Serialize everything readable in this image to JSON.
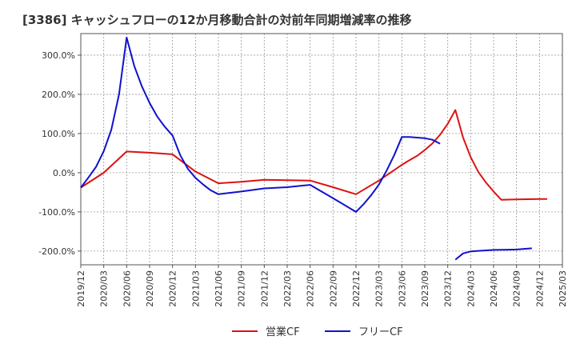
{
  "chart_data": {
    "type": "line",
    "title": "[3386]  キャッシュフローの12か月移動合計の対前年同期増減率の推移",
    "xlabel": "",
    "ylabel": "",
    "x_range": [
      "2019/12",
      "2025/03"
    ],
    "ylim": [
      -235,
      355
    ],
    "y_ticks": [
      {
        "value": 300,
        "label": "300.0%"
      },
      {
        "value": 200,
        "label": "200.0%"
      },
      {
        "value": 100,
        "label": "100.0%"
      },
      {
        "value": 0,
        "label": "0.0%"
      },
      {
        "value": -100,
        "label": "-100.0%"
      },
      {
        "value": -200,
        "label": "-200.0%"
      }
    ],
    "x_ticks": [
      "2019/12",
      "2020/03",
      "2020/06",
      "2020/09",
      "2020/12",
      "2021/03",
      "2021/06",
      "2021/09",
      "2021/12",
      "2022/03",
      "2022/06",
      "2022/09",
      "2022/12",
      "2023/03",
      "2023/06",
      "2023/09",
      "2023/12",
      "2024/03",
      "2024/06",
      "2024/09",
      "2024/12",
      "2025/03"
    ],
    "grid": true,
    "legend_position": "bottom",
    "series": [
      {
        "name": "営業CF",
        "color": "#dd1111",
        "points": [
          {
            "x": "2019/12",
            "y": -38
          },
          {
            "x": "2020/03",
            "y": 0
          },
          {
            "x": "2020/06",
            "y": 54
          },
          {
            "x": "2020/09",
            "y": 51
          },
          {
            "x": "2020/12",
            "y": 47
          },
          {
            "x": "2021/03",
            "y": 3
          },
          {
            "x": "2021/06",
            "y": -27
          },
          {
            "x": "2021/09",
            "y": -23
          },
          {
            "x": "2021/12",
            "y": -18
          },
          {
            "x": "2022/03",
            "y": -19
          },
          {
            "x": "2022/06",
            "y": -20
          },
          {
            "x": "2022/09",
            "y": -37
          },
          {
            "x": "2022/12",
            "y": -55
          },
          {
            "x": "2023/03",
            "y": -20
          },
          {
            "x": "2023/06",
            "y": 20
          },
          {
            "x": "2023/07",
            "y": 32
          },
          {
            "x": "2023/08",
            "y": 43
          },
          {
            "x": "2023/09",
            "y": 58
          },
          {
            "x": "2023/10",
            "y": 75
          },
          {
            "x": "2023/11",
            "y": 97
          },
          {
            "x": "2023/12",
            "y": 125
          },
          {
            "x": "2024/01",
            "y": 160
          },
          {
            "x": "2024/02",
            "y": 90
          },
          {
            "x": "2024/03",
            "y": 40
          },
          {
            "x": "2024/04",
            "y": 2
          },
          {
            "x": "2024/05",
            "y": -25
          },
          {
            "x": "2024/06",
            "y": -48
          },
          {
            "x": "2024/07",
            "y": -69
          },
          {
            "x": "2024/09",
            "y": -68
          },
          {
            "x": "2024/12",
            "y": -67
          },
          {
            "x": "2025/01",
            "y": -67
          }
        ]
      },
      {
        "name": "フリーCF",
        "color": "#1111cc",
        "points": [
          {
            "x": "2019/12",
            "y": -38
          },
          {
            "x": "2020/01",
            "y": -12
          },
          {
            "x": "2020/02",
            "y": 15
          },
          {
            "x": "2020/03",
            "y": 55
          },
          {
            "x": "2020/04",
            "y": 110
          },
          {
            "x": "2020/05",
            "y": 200
          },
          {
            "x": "2020/06",
            "y": 345
          },
          {
            "x": "2020/07",
            "y": 272
          },
          {
            "x": "2020/08",
            "y": 220
          },
          {
            "x": "2020/09",
            "y": 178
          },
          {
            "x": "2020/10",
            "y": 143
          },
          {
            "x": "2020/11",
            "y": 117
          },
          {
            "x": "2020/12",
            "y": 95
          },
          {
            "x": "2021/01",
            "y": 45
          },
          {
            "x": "2021/02",
            "y": 10
          },
          {
            "x": "2021/03",
            "y": -13
          },
          {
            "x": "2021/04",
            "y": -30
          },
          {
            "x": "2021/05",
            "y": -45
          },
          {
            "x": "2021/06",
            "y": -55
          },
          {
            "x": "2021/09",
            "y": -48
          },
          {
            "x": "2021/12",
            "y": -40
          },
          {
            "x": "2022/03",
            "y": -37
          },
          {
            "x": "2022/06",
            "y": -31
          },
          {
            "x": "2022/09",
            "y": -65
          },
          {
            "x": "2022/12",
            "y": -100
          },
          {
            "x": "2023/01",
            "y": -80
          },
          {
            "x": "2023/02",
            "y": -57
          },
          {
            "x": "2023/03",
            "y": -30
          },
          {
            "x": "2023/04",
            "y": 5
          },
          {
            "x": "2023/05",
            "y": 45
          },
          {
            "x": "2023/06",
            "y": 91
          },
          {
            "x": "2023/07",
            "y": 91
          },
          {
            "x": "2023/09",
            "y": 88
          },
          {
            "x": "2023/10",
            "y": 84
          },
          {
            "x": "2023/11",
            "y": 74
          },
          {
            "x": null,
            "y": null
          },
          {
            "x": "2024/01",
            "y": -222
          },
          {
            "x": "2024/02",
            "y": -206
          },
          {
            "x": "2024/03",
            "y": -201
          },
          {
            "x": "2024/06",
            "y": -197
          },
          {
            "x": "2024/09",
            "y": -196
          },
          {
            "x": "2024/11",
            "y": -193
          }
        ]
      }
    ]
  }
}
